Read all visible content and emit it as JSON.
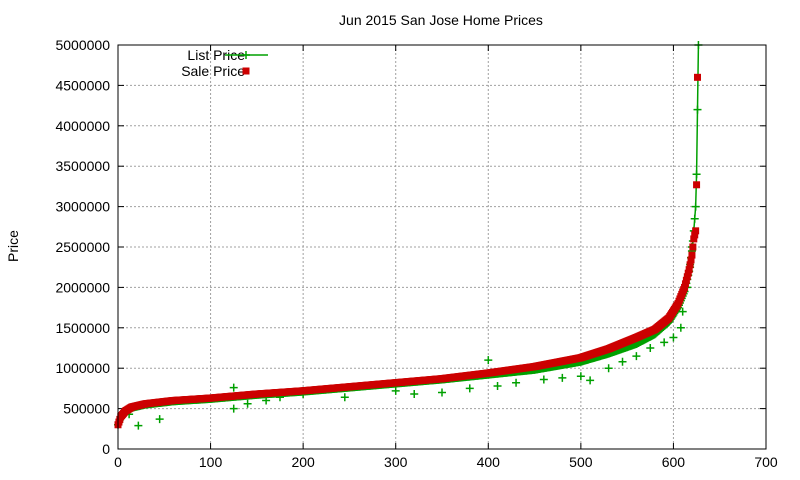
{
  "chart_data": {
    "type": "scatter",
    "title": "Jun 2015 San Jose Home Prices",
    "xlabel": "",
    "ylabel": "Price",
    "xlim": [
      0,
      700
    ],
    "ylim": [
      0,
      5000000
    ],
    "xticks": [
      "0",
      "100",
      "200",
      "300",
      "400",
      "500",
      "600",
      "700"
    ],
    "yticks": [
      "0",
      "500000",
      "1000000",
      "1500000",
      "2000000",
      "2500000",
      "3000000",
      "3500000",
      "4000000",
      "4500000",
      "5000000"
    ],
    "grid": true,
    "legend_position": "top-left",
    "series": [
      {
        "name": "List Price",
        "style": "line-with-plus-markers",
        "color": "#00a000",
        "curve": [
          [
            0,
            300000
          ],
          [
            3,
            390000
          ],
          [
            8,
            460000
          ],
          [
            15,
            510000
          ],
          [
            30,
            550000
          ],
          [
            60,
            590000
          ],
          [
            100,
            620000
          ],
          [
            150,
            670000
          ],
          [
            200,
            710000
          ],
          [
            250,
            760000
          ],
          [
            300,
            810000
          ],
          [
            350,
            860000
          ],
          [
            400,
            920000
          ],
          [
            450,
            980000
          ],
          [
            500,
            1080000
          ],
          [
            530,
            1180000
          ],
          [
            560,
            1300000
          ],
          [
            580,
            1420000
          ],
          [
            595,
            1570000
          ],
          [
            605,
            1750000
          ],
          [
            612,
            1950000
          ],
          [
            617,
            2200000
          ],
          [
            620,
            2450000
          ],
          [
            622,
            2700000
          ],
          [
            624,
            3000000
          ],
          [
            625,
            3400000
          ],
          [
            626,
            4200000
          ],
          [
            627,
            5000000
          ]
        ],
        "outliers": [
          [
            12,
            430000
          ],
          [
            22,
            290000
          ],
          [
            45,
            370000
          ],
          [
            125,
            500000
          ],
          [
            125,
            760000
          ],
          [
            140,
            560000
          ],
          [
            160,
            600000
          ],
          [
            175,
            640000
          ],
          [
            200,
            680000
          ],
          [
            245,
            640000
          ],
          [
            300,
            720000
          ],
          [
            320,
            680000
          ],
          [
            350,
            700000
          ],
          [
            380,
            750000
          ],
          [
            400,
            1100000
          ],
          [
            410,
            780000
          ],
          [
            430,
            820000
          ],
          [
            460,
            860000
          ],
          [
            480,
            880000
          ],
          [
            500,
            900000
          ],
          [
            510,
            850000
          ],
          [
            530,
            1000000
          ],
          [
            545,
            1080000
          ],
          [
            560,
            1150000
          ],
          [
            575,
            1250000
          ],
          [
            590,
            1320000
          ],
          [
            600,
            1380000
          ],
          [
            608,
            1500000
          ],
          [
            610,
            1700000
          ],
          [
            615,
            2000000
          ],
          [
            618,
            2250000
          ],
          [
            620,
            2500000
          ]
        ]
      },
      {
        "name": "Sale Price",
        "style": "square-markers",
        "color": "#cc0000",
        "curve": [
          [
            0,
            300000
          ],
          [
            3,
            400000
          ],
          [
            8,
            470000
          ],
          [
            15,
            520000
          ],
          [
            30,
            560000
          ],
          [
            60,
            600000
          ],
          [
            100,
            630000
          ],
          [
            150,
            680000
          ],
          [
            200,
            720000
          ],
          [
            250,
            770000
          ],
          [
            300,
            820000
          ],
          [
            350,
            870000
          ],
          [
            400,
            940000
          ],
          [
            450,
            1020000
          ],
          [
            500,
            1130000
          ],
          [
            530,
            1240000
          ],
          [
            560,
            1380000
          ],
          [
            580,
            1480000
          ],
          [
            595,
            1620000
          ],
          [
            605,
            1800000
          ],
          [
            612,
            2000000
          ],
          [
            617,
            2220000
          ],
          [
            620,
            2400000
          ],
          [
            622,
            2600000
          ],
          [
            624,
            2700000
          ]
        ],
        "extra_points": [
          [
            625,
            3270000
          ],
          [
            626,
            4600000
          ]
        ]
      }
    ]
  }
}
